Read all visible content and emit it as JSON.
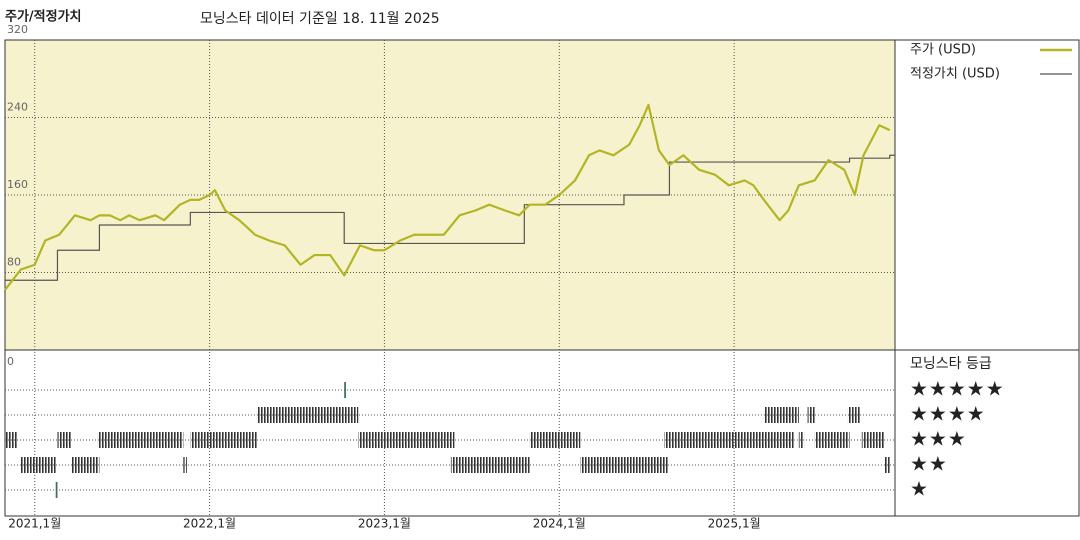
{
  "chart_data": {
    "type": "line",
    "title": "주가/적정가치",
    "subtitle": "모닝스타 데이터 기준일 18. 11월 2025",
    "xlim": [
      2020.83,
      2025.92
    ],
    "xticks": [
      {
        "value": 2021,
        "label": "2021,1월"
      },
      {
        "value": 2022,
        "label": "2022,1월"
      },
      {
        "value": 2023,
        "label": "2023,1월"
      },
      {
        "value": 2024,
        "label": "2024,1월"
      },
      {
        "value": 2025,
        "label": "2025,1월"
      }
    ],
    "ylim": [
      0,
      320
    ],
    "yticks": [
      0,
      80,
      160,
      240,
      320
    ],
    "grid": true,
    "series": [
      {
        "name": "주가 (USD)",
        "color": "#b3b526",
        "x": [
          2020.83,
          2020.92,
          2021.0,
          2021.06,
          2021.14,
          2021.23,
          2021.32,
          2021.37,
          2021.43,
          2021.49,
          2021.54,
          2021.6,
          2021.69,
          2021.74,
          2021.83,
          2021.89,
          2021.94,
          2022.0,
          2022.03,
          2022.09,
          2022.17,
          2022.26,
          2022.34,
          2022.43,
          2022.52,
          2022.6,
          2022.69,
          2022.77,
          2022.86,
          2022.94,
          2023.0,
          2023.09,
          2023.17,
          2023.26,
          2023.34,
          2023.43,
          2023.52,
          2023.6,
          2023.69,
          2023.77,
          2023.83,
          2023.92,
          2024.0,
          2024.09,
          2024.17,
          2024.23,
          2024.31,
          2024.4,
          2024.46,
          2024.51,
          2024.57,
          2024.63,
          2024.71,
          2024.8,
          2024.89,
          2024.97,
          2025.06,
          2025.11,
          2025.17,
          2025.26,
          2025.31,
          2025.37,
          2025.46,
          2025.54,
          2025.63,
          2025.69,
          2025.74,
          2025.83,
          2025.89
        ],
        "values": [
          62,
          83,
          88,
          113,
          119,
          139,
          134,
          139,
          139,
          134,
          139,
          134,
          139,
          134,
          150,
          155,
          155,
          160,
          165,
          144,
          134,
          119,
          113,
          108,
          88,
          98,
          98,
          77,
          108,
          103,
          103,
          113,
          119,
          119,
          119,
          139,
          144,
          150,
          144,
          139,
          150,
          150,
          160,
          175,
          201,
          206,
          201,
          212,
          232,
          253,
          206,
          191,
          201,
          186,
          181,
          170,
          175,
          170,
          155,
          134,
          144,
          170,
          175,
          196,
          186,
          160,
          201,
          232,
          227
        ]
      },
      {
        "name": "적정가치 (USD)",
        "color": "#555555",
        "step": true,
        "x": [
          2020.83,
          2021.13,
          2021.37,
          2021.89,
          2022.77,
          2023.8,
          2024.37,
          2024.63,
          2025.66,
          2025.89
        ],
        "values": [
          72,
          103,
          129,
          142,
          110,
          150,
          160,
          194,
          198,
          201
        ]
      }
    ],
    "rating_title": "모닝스타 등급",
    "rating_rows": [
      "★★★★★",
      "★★★★",
      "★★★",
      "★★",
      "★"
    ],
    "rating_periods": [
      {
        "rating": 3,
        "start": 2020.83,
        "end": 2020.9
      },
      {
        "rating": 3,
        "start": 2021.13,
        "end": 2021.21
      },
      {
        "rating": 3,
        "start": 2021.36,
        "end": 2021.85
      },
      {
        "rating": 3,
        "start": 2021.89,
        "end": 2022.27
      },
      {
        "rating": 3,
        "start": 2022.85,
        "end": 2023.4
      },
      {
        "rating": 3,
        "start": 2023.83,
        "end": 2024.12
      },
      {
        "rating": 3,
        "start": 2024.6,
        "end": 2025.34
      },
      {
        "rating": 3,
        "start": 2025.37,
        "end": 2025.4
      },
      {
        "rating": 3,
        "start": 2025.46,
        "end": 2025.66
      },
      {
        "rating": 3,
        "start": 2025.73,
        "end": 2025.86
      },
      {
        "rating": 2,
        "start": 2020.92,
        "end": 2021.12
      },
      {
        "rating": 2,
        "start": 2021.21,
        "end": 2021.37
      },
      {
        "rating": 2,
        "start": 2021.85,
        "end": 2021.87
      },
      {
        "rating": 2,
        "start": 2023.38,
        "end": 2023.83
      },
      {
        "rating": 2,
        "start": 2024.12,
        "end": 2024.62
      },
      {
        "rating": 2,
        "start": 2025.86,
        "end": 2025.89
      },
      {
        "rating": 4,
        "start": 2022.27,
        "end": 2022.85
      },
      {
        "rating": 4,
        "start": 2025.17,
        "end": 2025.37
      },
      {
        "rating": 4,
        "start": 2025.42,
        "end": 2025.46
      },
      {
        "rating": 4,
        "start": 2025.65,
        "end": 2025.72
      },
      {
        "rating": 5,
        "start": 2022.77,
        "end": 2022.78
      },
      {
        "rating": 1,
        "start": 2021.12,
        "end": 2021.13
      }
    ]
  }
}
